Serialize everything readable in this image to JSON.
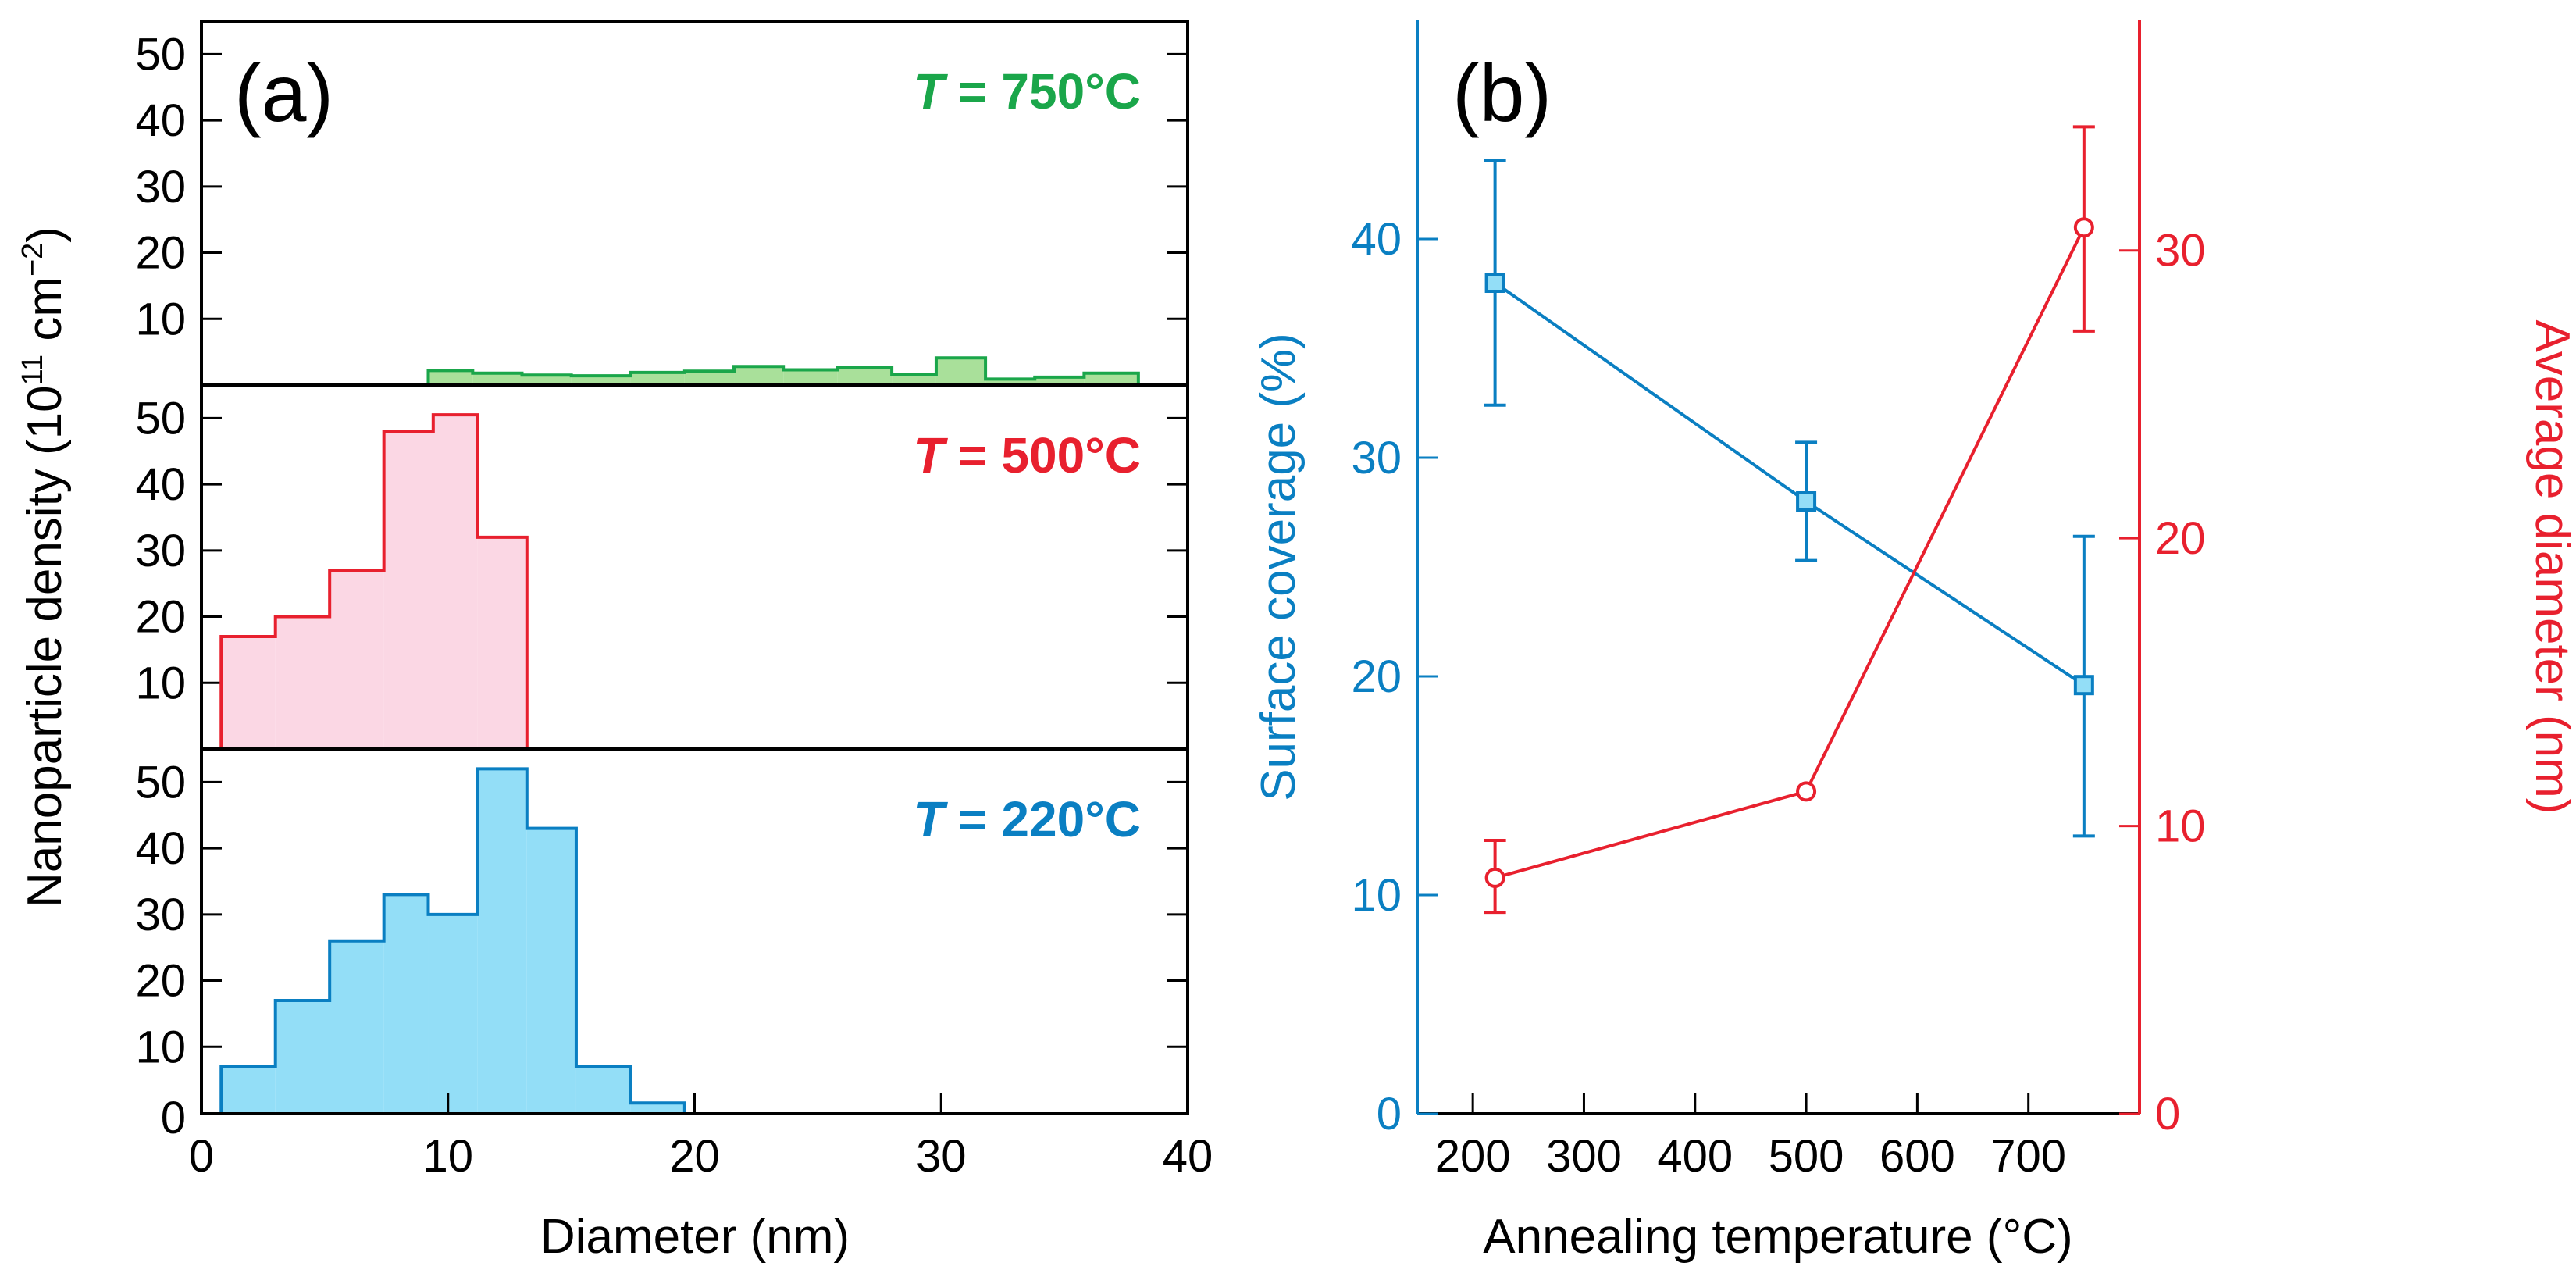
{
  "chart_data": [
    {
      "panel_label": "(a)",
      "type": "histogram",
      "xlabel": "Diameter (nm)",
      "ylabel": "Nanoparticle density (10",
      "ylabel_sup1": "11",
      "ylabel_unit": " cm",
      "ylabel_sup2": "−2",
      "ylabel_close": ")",
      "xlim": [
        0,
        40
      ],
      "ylim": [
        0,
        55
      ],
      "xticks": [
        "0",
        "10",
        "20",
        "30",
        "40"
      ],
      "yticks": [
        "10",
        "20",
        "30",
        "40",
        "50"
      ],
      "y_zero_label": "0",
      "series": [
        {
          "name": "T = 750°C",
          "symbol": "T",
          "label_rest": " = 750°C",
          "color": "#1aa64a",
          "fill": "#a9e09a",
          "bins": [
            {
              "x0": 9.2,
              "x1": 11.0,
              "v": 2.2
            },
            {
              "x0": 11.0,
              "x1": 13.0,
              "v": 1.8
            },
            {
              "x0": 13.0,
              "x1": 15.0,
              "v": 1.5
            },
            {
              "x0": 15.0,
              "x1": 17.4,
              "v": 1.4
            },
            {
              "x0": 17.4,
              "x1": 19.6,
              "v": 1.9
            },
            {
              "x0": 19.6,
              "x1": 21.6,
              "v": 2.1
            },
            {
              "x0": 21.6,
              "x1": 23.6,
              "v": 2.8
            },
            {
              "x0": 23.6,
              "x1": 25.8,
              "v": 2.3
            },
            {
              "x0": 25.8,
              "x1": 28.0,
              "v": 2.7
            },
            {
              "x0": 28.0,
              "x1": 29.8,
              "v": 1.6
            },
            {
              "x0": 29.8,
              "x1": 31.8,
              "v": 4.1
            },
            {
              "x0": 31.8,
              "x1": 33.8,
              "v": 0.9
            },
            {
              "x0": 33.8,
              "x1": 35.8,
              "v": 1.2
            },
            {
              "x0": 35.8,
              "x1": 38.0,
              "v": 1.8
            }
          ]
        },
        {
          "name": "T = 500°C",
          "symbol": "T",
          "label_rest": " = 500°C",
          "color": "#e8202e",
          "fill": "#fbd7e4",
          "bins": [
            {
              "x0": 0.8,
              "x1": 3.0,
              "v": 17
            },
            {
              "x0": 3.0,
              "x1": 5.2,
              "v": 20
            },
            {
              "x0": 5.2,
              "x1": 7.4,
              "v": 27
            },
            {
              "x0": 7.4,
              "x1": 9.4,
              "v": 48
            },
            {
              "x0": 9.4,
              "x1": 11.2,
              "v": 50.5
            },
            {
              "x0": 11.2,
              "x1": 13.2,
              "v": 32
            }
          ]
        },
        {
          "name": "T = 220°C",
          "symbol": "T",
          "label_rest": " = 220°C",
          "color": "#0a7fc2",
          "fill": "#93def7",
          "bins": [
            {
              "x0": 0.8,
              "x1": 3.0,
              "v": 7
            },
            {
              "x0": 3.0,
              "x1": 5.2,
              "v": 17
            },
            {
              "x0": 5.2,
              "x1": 7.4,
              "v": 26
            },
            {
              "x0": 7.4,
              "x1": 9.2,
              "v": 33
            },
            {
              "x0": 9.2,
              "x1": 11.2,
              "v": 30
            },
            {
              "x0": 11.2,
              "x1": 13.2,
              "v": 52
            },
            {
              "x0": 13.2,
              "x1": 15.2,
              "v": 43
            },
            {
              "x0": 15.2,
              "x1": 17.4,
              "v": 7
            },
            {
              "x0": 17.4,
              "x1": 19.6,
              "v": 1.5
            }
          ]
        }
      ]
    },
    {
      "panel_label": "(b)",
      "type": "line",
      "xlabel": "Annealing temperature (°C)",
      "xlim": [
        150,
        800
      ],
      "xticks": [
        "200",
        "300",
        "400",
        "500",
        "600",
        "700"
      ],
      "y_left": {
        "label": "Surface coverage (%)",
        "color": "#0a7fc2",
        "lim": [
          0,
          50
        ],
        "ticks": [
          "0",
          "10",
          "20",
          "30",
          "40"
        ]
      },
      "y_right": {
        "label": "Average diameter (nm)",
        "color": "#e8202e",
        "lim": [
          0,
          38
        ],
        "ticks": [
          "0",
          "10",
          "20",
          "30"
        ]
      },
      "series": [
        {
          "name": "Surface coverage",
          "axis": "left",
          "marker": "square",
          "color": "#0a7fc2",
          "x": [
            220,
            500,
            750
          ],
          "y": [
            38,
            28,
            19.6
          ],
          "err_low": [
            32.4,
            25.3,
            12.7
          ],
          "err_high": [
            43.6,
            30.7,
            26.4
          ]
        },
        {
          "name": "Average diameter",
          "axis": "right",
          "marker": "circle",
          "color": "#e8202e",
          "x": [
            220,
            500,
            750
          ],
          "y": [
            8.2,
            11.2,
            30.8
          ],
          "err_low": [
            7.0,
            11.2,
            27.2
          ],
          "err_high": [
            9.5,
            11.2,
            34.3
          ]
        }
      ]
    }
  ]
}
